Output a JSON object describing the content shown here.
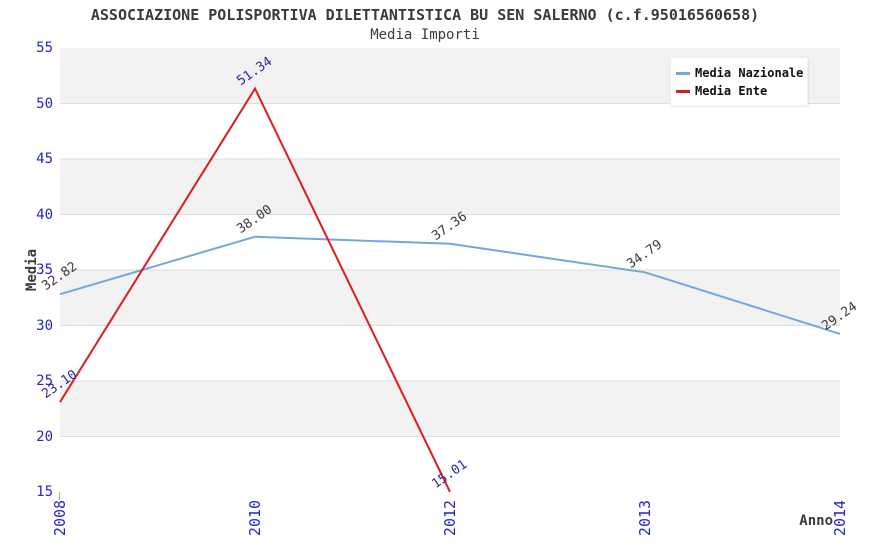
{
  "title": "ASSOCIAZIONE POLISPORTIVA DILETTANTISTICA BU SEN SALERNO (c.f.95016560658)",
  "subtitle": "Media Importi",
  "chart_data": {
    "type": "line",
    "categories": [
      "2008",
      "2010",
      "2012",
      "2013",
      "2014"
    ],
    "series": [
      {
        "name": "Media Nazionale",
        "color": "#74a7dc",
        "label_color": "#3a3a3a",
        "values": [
          32.82,
          38.0,
          37.36,
          34.79,
          29.24
        ]
      },
      {
        "name": "Media Ente",
        "color": "#dd1c1c",
        "label_color": "#28289b",
        "values": [
          23.1,
          51.34,
          15.01,
          null,
          null
        ]
      }
    ],
    "xlabel": "Anno",
    "ylabel": "Media",
    "ylim": [
      15,
      55
    ],
    "yticks": [
      15,
      20,
      25,
      30,
      35,
      40,
      45,
      50,
      55
    ],
    "tick_color": "#2525cc",
    "band_color": "#f2f2f2",
    "gridline_color": "#dddddd",
    "grid": "horizontal gridlines with alternating background bands",
    "legend_position": "top-right",
    "value_label_decimals": 2
  }
}
